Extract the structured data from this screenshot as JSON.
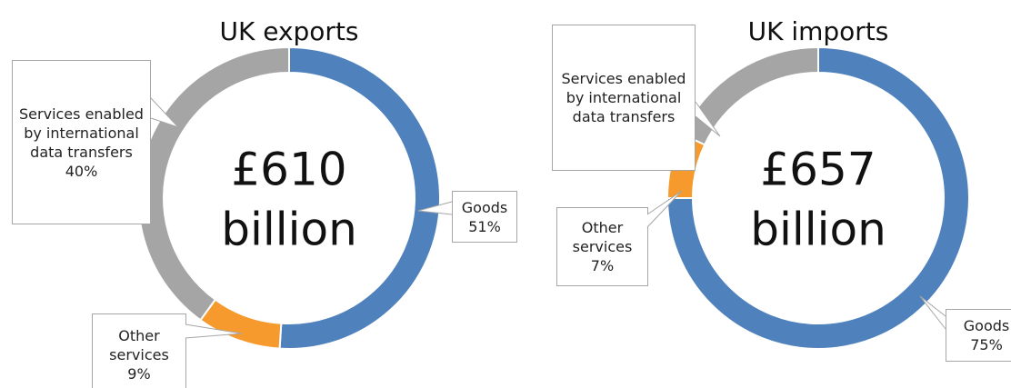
{
  "chart_data": [
    {
      "type": "donut",
      "title": "UK exports",
      "center_label": [
        "£610",
        "billion"
      ],
      "categories": [
        "Goods",
        "Other services",
        "Services enabled by international data transfers"
      ],
      "values": [
        51,
        9,
        40
      ],
      "value_labels": [
        "51%",
        "9%",
        "40%"
      ],
      "colors": [
        "#4f81bd",
        "#f79a2e",
        "#a5a5a5"
      ]
    },
    {
      "type": "donut",
      "title": "UK imports",
      "center_label": [
        "£657",
        "billion"
      ],
      "categories": [
        "Goods",
        "Other services",
        "Services enabled by international data transfers"
      ],
      "values": [
        75,
        7,
        18
      ],
      "value_labels": [
        "75%",
        "7%",
        null
      ],
      "colors": [
        "#4f81bd",
        "#f79a2e",
        "#a5a5a5"
      ]
    }
  ]
}
